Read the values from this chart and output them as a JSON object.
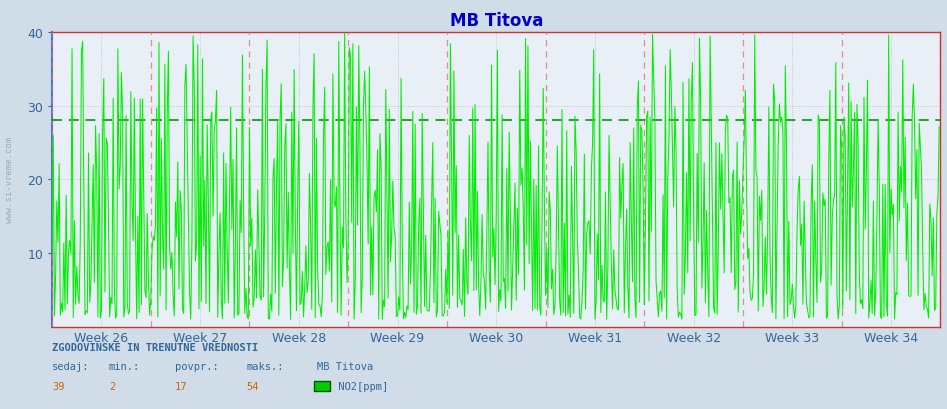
{
  "title": "MB Titova",
  "title_color": "#0000cc",
  "bg_color": "#d0dce8",
  "plot_bg_color": "#e8eff6",
  "ylim": [
    0,
    40
  ],
  "yticks": [
    10,
    20,
    30,
    40
  ],
  "week_labels": [
    "Week 26",
    "Week 27",
    "Week 28",
    "Week 29",
    "Week 30",
    "Week 31",
    "Week 32",
    "Week 33",
    "Week 34"
  ],
  "n_weeks": 9,
  "n_per_week": 84,
  "line_color": "#00ee00",
  "avg_line_color": "#009900",
  "avg_value": 28,
  "vline_color": "#dd7777",
  "grid_color": "#aab4cc",
  "tick_color": "#336699",
  "left_spine_color": "#5577bb",
  "right_spine_color": "#cc3333",
  "top_spine_color": "#cc3333",
  "bottom_spine_color": "#cc3333",
  "info_header": "ZGODOVINSKE IN TRENUTNE VREDNOSTI",
  "col_labels": [
    "sedaj:",
    "min.:",
    "povpr.:",
    "maks.:",
    "MB Titova"
  ],
  "col_vals": [
    "39",
    "2",
    "17",
    "54"
  ],
  "legend_label": " NO2[ppm]",
  "legend_color": "#00cc00",
  "watermark": "www.si-vreme.com"
}
